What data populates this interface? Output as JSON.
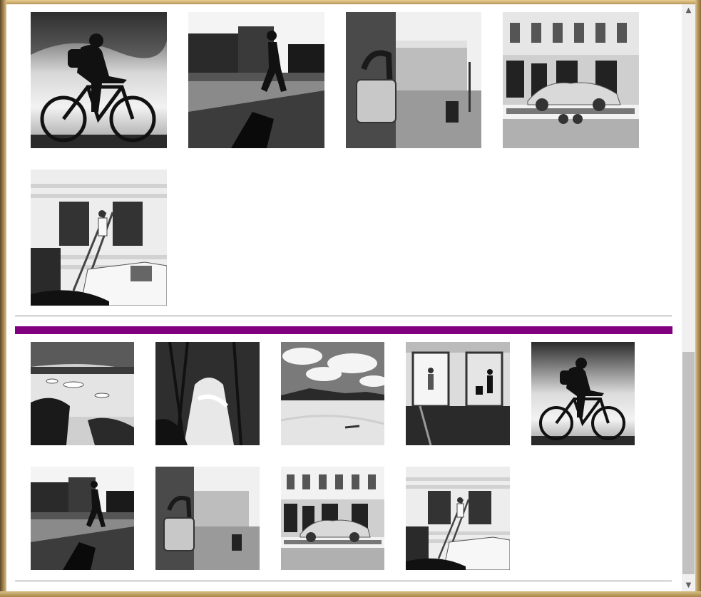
{
  "window": {
    "accent_color": "#800080"
  },
  "gallery_a": {
    "photos": [
      {
        "subject": "cyclist-silhouette"
      },
      {
        "subject": "pedestrian-city"
      },
      {
        "subject": "padlock-street"
      },
      {
        "subject": "classic-car-trailer"
      },
      {
        "subject": "worker-ladder-van"
      }
    ]
  },
  "gallery_b": {
    "photos": [
      {
        "subject": "icy-lake"
      },
      {
        "subject": "forest-waterfall"
      },
      {
        "subject": "desert-dunes"
      },
      {
        "subject": "station-elevators"
      },
      {
        "subject": "cyclist-silhouette"
      },
      {
        "subject": "pedestrian-city"
      },
      {
        "subject": "padlock-street"
      },
      {
        "subject": "classic-car-trailer"
      },
      {
        "subject": "worker-ladder-van"
      }
    ]
  },
  "scrollbar": {
    "up_glyph": "▲",
    "down_glyph": "▼"
  }
}
